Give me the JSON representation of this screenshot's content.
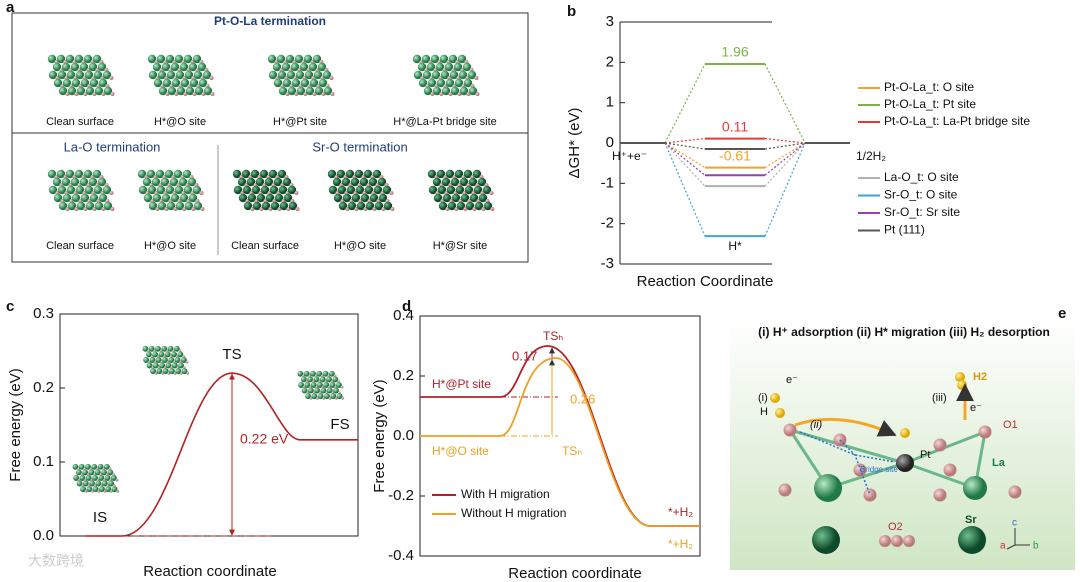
{
  "panel_labels": [
    "a",
    "b",
    "c",
    "d",
    "e"
  ],
  "panel_a": {
    "groups": [
      {
        "title": "Pt-O-La termination",
        "items": [
          "Clean surface",
          "H*@O site",
          "H*@Pt site",
          "H*@La-Pt bridge site"
        ]
      },
      {
        "title": "La-O termination",
        "items": [
          "Clean surface",
          "H*@O site"
        ]
      },
      {
        "title": "Sr-O termination",
        "items": [
          "Clean surface",
          "H*@O site",
          "H*@Sr site"
        ]
      }
    ]
  },
  "chart_data": [
    {
      "type": "energy_level",
      "ylabel": "ΔGH* (eV)",
      "xlabel": "Reaction Coordinate",
      "states": [
        "H⁺+e⁻",
        "H*",
        "1/2H₂"
      ],
      "ylim": [
        -3,
        3
      ],
      "yticks": [
        -3,
        -2,
        -1,
        0,
        1,
        2,
        3
      ],
      "series": [
        {
          "name": "Pt-O-La_t: O site",
          "color": "#f5a028",
          "values": [
            0,
            -0.61,
            0
          ],
          "show_label": true
        },
        {
          "name": "Pt-O-La_t: Pt site",
          "color": "#7cb342",
          "values": [
            0,
            1.96,
            0
          ],
          "show_label": true
        },
        {
          "name": "Pt-O-La_t: La-Pt bridge site",
          "color": "#e53935",
          "values": [
            0,
            0.11,
            0
          ],
          "show_label": true
        },
        {
          "name": "La-O_t: O site",
          "color": "#b0b0b0",
          "values": [
            0,
            -1.07,
            0
          ],
          "show_label": false
        },
        {
          "name": "Sr-O_t: O site",
          "color": "#3ea6d0",
          "values": [
            0,
            -2.31,
            0
          ],
          "show_label": false
        },
        {
          "name": "Sr-O_t: Sr site",
          "color": "#8e44ad",
          "values": [
            0,
            -0.8,
            0
          ],
          "show_label": false
        },
        {
          "name": "Pt (111)",
          "color": "#555555",
          "values": [
            0,
            -0.15,
            0
          ],
          "show_label": false
        }
      ]
    },
    {
      "type": "line",
      "ylabel": "Free energy (eV)",
      "xlabel": "Reaction coordinate",
      "categories": [
        "IS",
        "TS",
        "FS"
      ],
      "values": [
        0,
        0.22,
        0.13
      ],
      "color": "#b22222",
      "annotation": "0.22 eV",
      "ylim": [
        0,
        0.3
      ],
      "yticks": [
        {
          "value": 0,
          "label": "0.0"
        },
        0.1,
        0.2,
        0.3
      ]
    },
    {
      "type": "line",
      "ylabel": "Free energy (eV)",
      "xlabel": "Reaction coordinate",
      "ylim": [
        -0.4,
        0.4
      ],
      "yticks": [
        -0.4,
        -0.2,
        {
          "value": 0,
          "label": "0.0"
        },
        0.2,
        0.4
      ],
      "legend": "lower left",
      "series": [
        {
          "name": "With H migration",
          "color": "#b0202a",
          "values": [
            0.13,
            0.3,
            -0.3
          ],
          "initial_label": "H*@Pt site",
          "ts_label": "TSₕ",
          "final_label": "*+H₂",
          "barrier_label": "0.17"
        },
        {
          "name": "Without H migration",
          "color": "#f0a020",
          "values": [
            0,
            0.26,
            -0.3
          ],
          "initial_label": "H*@O site",
          "ts_label": "TSₕ",
          "final_label": "*+H₂",
          "barrier_label": "0.26"
        }
      ]
    }
  ],
  "panel_e": {
    "title": "(i) H⁺ adsorption (ii) H* migration (iii) H₂ desorption",
    "labels": {
      "step1": "(i)",
      "step2": "(ii)",
      "step3": "(iii)",
      "e1": "e⁻",
      "e2": "e⁻",
      "h": "H",
      "h2": "H2",
      "pt": "Pt",
      "o1": "O1",
      "la": "La",
      "bridge": "Bridge site",
      "sr": "Sr",
      "o2": "O2",
      "c": "c",
      "a": "a",
      "b": "b"
    }
  },
  "watermark": "大数跨境"
}
